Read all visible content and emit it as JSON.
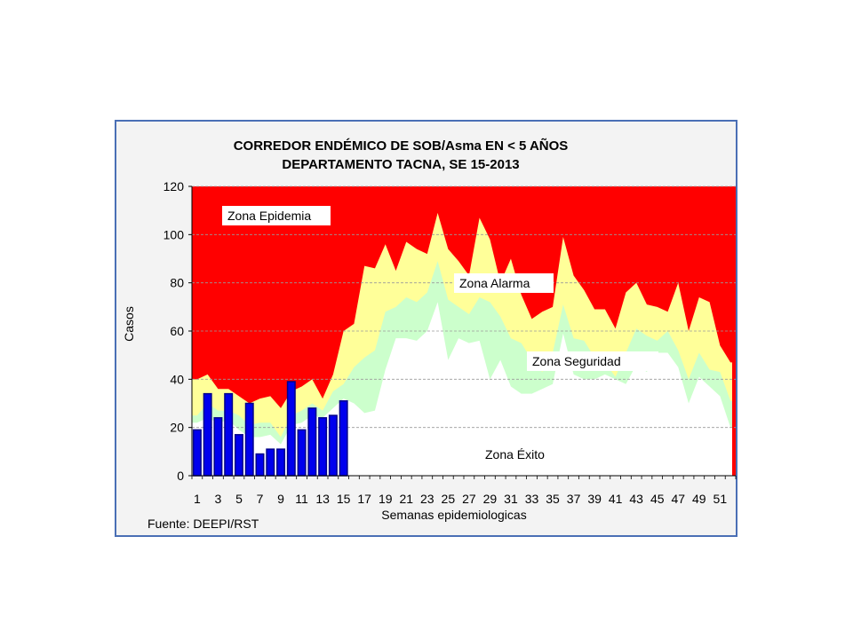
{
  "chart_data": {
    "type": "area",
    "title": [
      "CORREDOR ENDÉMICO DE SOB/Asma EN < 5 AÑOS",
      "DEPARTAMENTO TACNA,  SE  15-2013"
    ],
    "ylabel": "Casos",
    "xlabel": "Semanas epidemiologicas",
    "source": "Fuente:  DEEPI/RST",
    "ylim": [
      0,
      120
    ],
    "yticks": [
      0,
      20,
      40,
      60,
      80,
      100,
      120
    ],
    "xticks": [
      "1",
      "3",
      "5",
      "7",
      "9",
      "11",
      "13",
      "15",
      "17",
      "19",
      "21",
      "23",
      "25",
      "27",
      "29",
      "31",
      "33",
      "35",
      "37",
      "39",
      "41",
      "43",
      "45",
      "47",
      "49",
      "51"
    ],
    "weeks": [
      1,
      2,
      3,
      4,
      5,
      6,
      7,
      8,
      9,
      10,
      11,
      12,
      13,
      14,
      15,
      16,
      17,
      18,
      19,
      20,
      21,
      22,
      23,
      24,
      25,
      26,
      27,
      28,
      29,
      30,
      31,
      32,
      33,
      34,
      35,
      36,
      37,
      38,
      39,
      40,
      41,
      42,
      43,
      44,
      45,
      46,
      47,
      48,
      49,
      50,
      51,
      52
    ],
    "zones": [
      "Zona Epidemia",
      "Zona Alarma",
      "Zona Seguridad",
      "Zona Éxito"
    ],
    "colors": {
      "epidemia": "#ff0000",
      "alarma": "#ffff99",
      "seguridad": "#ccffcc",
      "exito": "#ffffff",
      "bars": "#0000ee",
      "bar_edge": "#00008b"
    },
    "series": [
      {
        "name": "Zona Alarma",
        "values": [
          40,
          42,
          36,
          36,
          33,
          30,
          32,
          33,
          28,
          35,
          37,
          40,
          32,
          42,
          60,
          63,
          87,
          86,
          96,
          85,
          97,
          94,
          92,
          109,
          94,
          89,
          83,
          107,
          98,
          80,
          90,
          75,
          65,
          68,
          70,
          99,
          83,
          77,
          69,
          69,
          61,
          76,
          80,
          71,
          70,
          68,
          80,
          60,
          74,
          72,
          54,
          47
        ]
      },
      {
        "name": "Zona Seguridad",
        "values": [
          25,
          30,
          27,
          27,
          25,
          21,
          22,
          22,
          16,
          25,
          27,
          30,
          27,
          35,
          38,
          45,
          49,
          52,
          68,
          70,
          74,
          72,
          76,
          89,
          73,
          70,
          67,
          74,
          72,
          66,
          57,
          55,
          48,
          43,
          51,
          71,
          57,
          56,
          49,
          47,
          41,
          51,
          61,
          58,
          56,
          60,
          52,
          40,
          51,
          44,
          43,
          31
        ]
      },
      {
        "name": "Zona Éxito",
        "values": [
          22,
          24,
          22,
          23,
          19,
          16,
          16,
          17,
          13,
          21,
          22,
          25,
          24,
          28,
          32,
          30,
          26,
          27,
          44,
          57,
          57,
          56,
          60,
          72,
          48,
          57,
          55,
          56,
          40,
          48,
          37,
          34,
          34,
          36,
          38,
          59,
          42,
          40,
          40,
          42,
          40,
          38,
          46,
          43,
          51,
          51,
          45,
          30,
          41,
          37,
          33,
          20
        ]
      },
      {
        "name": "2013",
        "values": [
          19,
          34,
          24,
          34,
          17,
          30,
          9,
          11,
          11,
          39,
          19,
          28,
          24,
          25,
          31
        ]
      }
    ]
  }
}
